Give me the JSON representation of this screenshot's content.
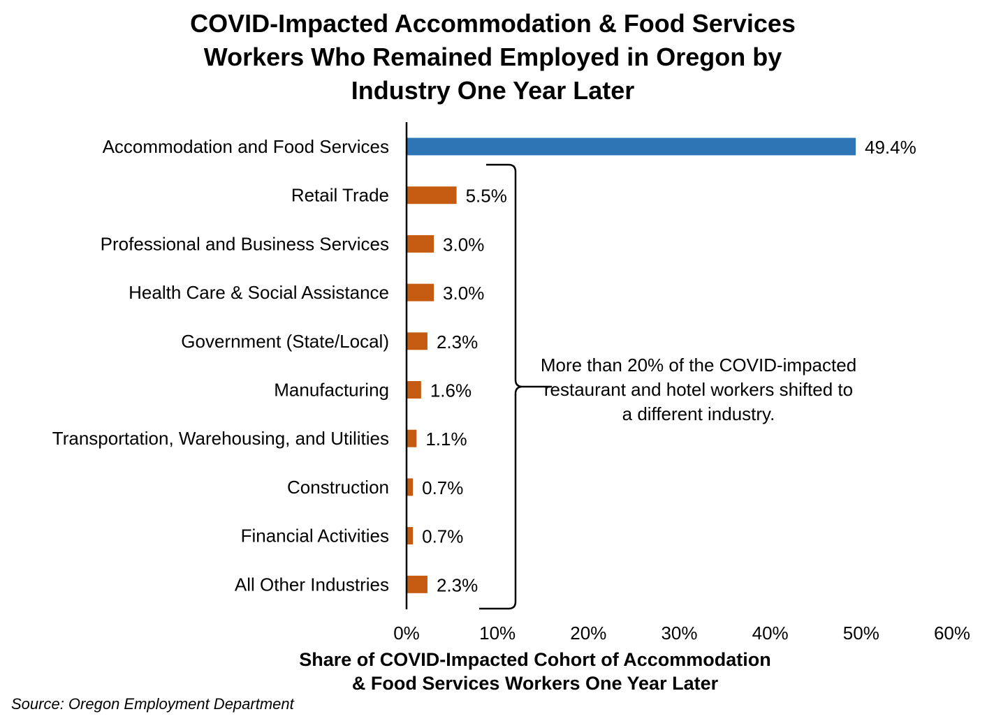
{
  "chart_data": {
    "type": "bar",
    "orientation": "horizontal",
    "title_lines": [
      "COVID-Impacted Accommodation & Food Services",
      "Workers Who Remained Employed in Oregon by",
      "Industry One Year Later"
    ],
    "categories": [
      "Accommodation and Food Services",
      "Retail Trade",
      "Professional and Business Services",
      "Health Care & Social Assistance",
      "Government (State/Local)",
      "Manufacturing",
      "Transportation, Warehousing, and Utilities",
      "Construction",
      "Financial Activities",
      "All Other Industries"
    ],
    "values": [
      49.4,
      5.5,
      3.0,
      3.0,
      2.3,
      1.6,
      1.1,
      0.7,
      0.7,
      2.3
    ],
    "value_labels": [
      "49.4%",
      "5.5%",
      "3.0%",
      "3.0%",
      "2.3%",
      "1.6%",
      "1.1%",
      "0.7%",
      "0.7%",
      "2.3%"
    ],
    "bar_colors": [
      "#2E75B6",
      "#C55A11",
      "#C55A11",
      "#C55A11",
      "#C55A11",
      "#C55A11",
      "#C55A11",
      "#C55A11",
      "#C55A11",
      "#C55A11"
    ],
    "xlim": [
      0,
      60
    ],
    "xticks": [
      0,
      10,
      20,
      30,
      40,
      50,
      60
    ],
    "xtick_labels": [
      "0%",
      "10%",
      "20%",
      "30%",
      "40%",
      "50%",
      "60%"
    ],
    "xlabel_lines": [
      "Share of COVID-Impacted Cohort of Accommodation",
      "& Food Services Workers One Year Later"
    ],
    "ylabel": "",
    "grid": false,
    "legend": "none",
    "annotation": {
      "text": "More than 20% of the COVID-impacted restaurant and hotel workers shifted to a different industry.",
      "brace_range": [
        "Retail Trade",
        "All Other Industries"
      ]
    }
  },
  "source": "Source: Oregon Employment Department"
}
